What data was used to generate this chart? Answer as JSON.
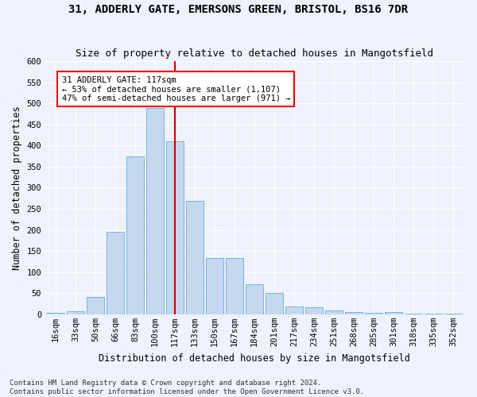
{
  "title_line1": "31, ADDERLY GATE, EMERSONS GREEN, BRISTOL, BS16 7DR",
  "title_line2": "Size of property relative to detached houses in Mangotsfield",
  "xlabel": "Distribution of detached houses by size in Mangotsfield",
  "ylabel": "Number of detached properties",
  "bar_color": "#c5d8f0",
  "bar_edge_color": "#6aaad4",
  "annotation_line1": "31 ADDERLY GATE: 117sqm",
  "annotation_line2": "← 53% of detached houses are smaller (1,107)",
  "annotation_line3": "47% of semi-detached houses are larger (971) →",
  "vline_color": "#cc0000",
  "categories": [
    "16sqm",
    "33sqm",
    "50sqm",
    "66sqm",
    "83sqm",
    "100sqm",
    "117sqm",
    "133sqm",
    "150sqm",
    "167sqm",
    "184sqm",
    "201sqm",
    "217sqm",
    "234sqm",
    "251sqm",
    "268sqm",
    "285sqm",
    "301sqm",
    "318sqm",
    "335sqm",
    "352sqm"
  ],
  "values": [
    4,
    8,
    41,
    195,
    375,
    490,
    410,
    268,
    133,
    133,
    72,
    50,
    19,
    16,
    9,
    5,
    3,
    5,
    2,
    1,
    1
  ],
  "ylim": [
    0,
    600
  ],
  "yticks": [
    0,
    50,
    100,
    150,
    200,
    250,
    300,
    350,
    400,
    450,
    500,
    550,
    600
  ],
  "vline_x_index": 6,
  "background_color": "#eef2fc",
  "footer_line1": "Contains HM Land Registry data © Crown copyright and database right 2024.",
  "footer_line2": "Contains public sector information licensed under the Open Government Licence v3.0.",
  "title_fontsize": 10,
  "subtitle_fontsize": 9,
  "axis_label_fontsize": 8.5,
  "tick_fontsize": 7.5,
  "footer_fontsize": 6.5
}
